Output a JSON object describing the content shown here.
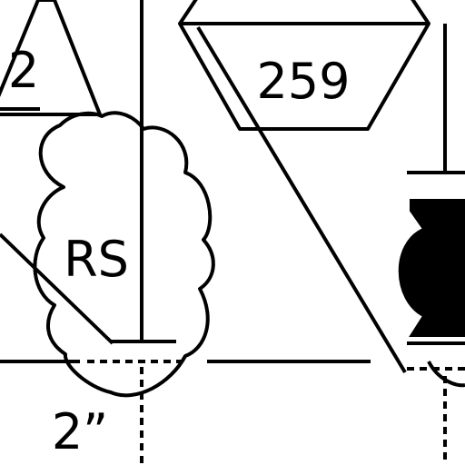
{
  "diagram": {
    "triangle_label": "2",
    "hexagon_label": "259",
    "cloud_label": "RS",
    "dimension_label": "2”"
  },
  "colors": {
    "ink": "#000000",
    "paper": "#ffffff"
  }
}
